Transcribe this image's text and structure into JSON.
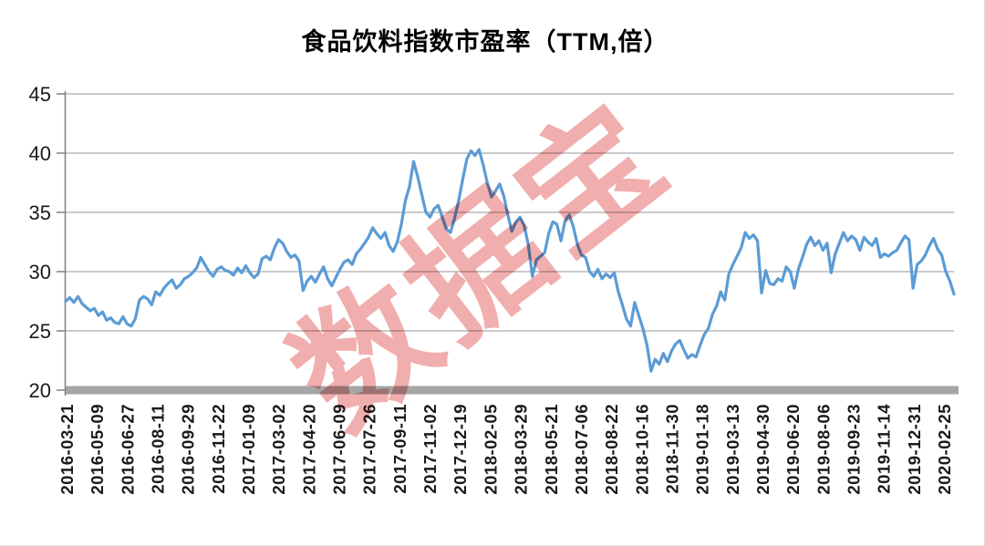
{
  "watermark": "数据宝",
  "colors": {
    "line": "#5B9BD5",
    "watermark": "rgba(228,100,100,0.52)",
    "gridline": "#ABABAB",
    "axis": "#7F7F7F",
    "baseline_bar": "#A6A6A6",
    "tick_label": "#1a1a1a",
    "background": "#FFFFFF"
  },
  "chart_data": {
    "type": "line",
    "title": "食品饮料指数市盈率（TTM,倍）",
    "xlabel": "",
    "ylabel": "",
    "ylim": [
      20,
      45
    ],
    "y_ticks": [
      20,
      25,
      30,
      35,
      40,
      45
    ],
    "grid": "horizontal",
    "legend": "none",
    "x_tick_labels": [
      "2016-03-21",
      "2016-05-09",
      "2016-06-27",
      "2016-08-11",
      "2016-09-29",
      "2016-11-22",
      "2017-01-09",
      "2017-03-02",
      "2017-04-20",
      "2017-06-09",
      "2017-07-26",
      "2017-09-11",
      "2017-11-02",
      "2017-12-19",
      "2018-02-05",
      "2018-03-29",
      "2018-05-21",
      "2018-07-06",
      "2018-08-22",
      "2018-10-16",
      "2018-11-30",
      "2019-01-18",
      "2019-03-13",
      "2019-04-30",
      "2019-06-20",
      "2019-08-06",
      "2019-09-23",
      "2019-11-14",
      "2019-12-31",
      "2020-02-25"
    ],
    "series": [
      {
        "name": "食品饮料指数市盈率(TTM,倍)",
        "x_start": "2016-03-21",
        "x_end": "2020-02-25",
        "sampling": "uniform between x_start and x_end (daily data approximated)",
        "values": [
          27.5,
          27.8,
          27.4,
          27.9,
          27.3,
          27.0,
          26.7,
          26.9,
          26.3,
          26.6,
          25.9,
          26.1,
          25.7,
          25.6,
          26.2,
          25.6,
          25.4,
          26.0,
          27.6,
          27.9,
          27.7,
          27.2,
          28.3,
          28.0,
          28.6,
          29.0,
          29.3,
          28.6,
          28.9,
          29.4,
          29.6,
          29.9,
          30.3,
          31.2,
          30.6,
          30.0,
          29.6,
          30.2,
          30.4,
          30.1,
          30.0,
          29.7,
          30.3,
          29.9,
          30.5,
          29.9,
          29.5,
          29.8,
          31.1,
          31.3,
          31.0,
          32.0,
          32.7,
          32.4,
          31.7,
          31.2,
          31.4,
          30.9,
          28.4,
          29.2,
          29.6,
          29.1,
          29.8,
          30.4,
          29.4,
          28.8,
          29.5,
          30.2,
          30.8,
          31.0,
          30.6,
          31.5,
          31.9,
          32.4,
          32.9,
          33.7,
          33.2,
          32.8,
          33.3,
          32.2,
          31.7,
          32.5,
          34.0,
          36.0,
          37.2,
          39.3,
          38.0,
          36.5,
          35.0,
          34.6,
          35.3,
          35.6,
          34.6,
          33.6,
          33.3,
          34.5,
          36.0,
          37.8,
          39.5,
          40.2,
          39.8,
          40.3,
          39.0,
          37.5,
          36.3,
          36.8,
          37.4,
          36.4,
          34.8,
          33.4,
          34.2,
          34.6,
          33.9,
          32.3,
          29.6,
          31.0,
          31.3,
          31.6,
          33.2,
          34.2,
          34.0,
          32.6,
          34.3,
          34.8,
          33.8,
          32.3,
          31.4,
          31.2,
          30.0,
          29.6,
          30.2,
          29.4,
          29.8,
          29.5,
          29.9,
          28.3,
          27.2,
          26.0,
          25.4,
          27.4,
          26.3,
          25.2,
          23.8,
          21.6,
          22.6,
          22.2,
          23.1,
          22.4,
          23.3,
          23.9,
          24.2,
          23.4,
          22.7,
          23.0,
          22.8,
          23.8,
          24.7,
          25.2,
          26.4,
          27.1,
          28.3,
          27.6,
          29.8,
          30.6,
          31.3,
          32.0,
          33.3,
          32.8,
          33.1,
          32.6,
          28.2,
          30.1,
          29.0,
          28.9,
          29.4,
          29.2,
          30.4,
          30.0,
          28.6,
          30.2,
          31.2,
          32.3,
          32.9,
          32.2,
          32.6,
          31.8,
          32.4,
          29.9,
          31.5,
          32.4,
          33.3,
          32.6,
          33.0,
          32.7,
          31.8,
          32.9,
          32.5,
          32.2,
          32.8,
          31.2,
          31.5,
          31.3,
          31.6,
          31.8,
          32.4,
          33.0,
          32.7,
          28.6,
          30.6,
          30.9,
          31.4,
          32.2,
          32.8,
          31.9,
          31.4,
          30.0,
          29.2,
          28.1
        ]
      }
    ]
  }
}
